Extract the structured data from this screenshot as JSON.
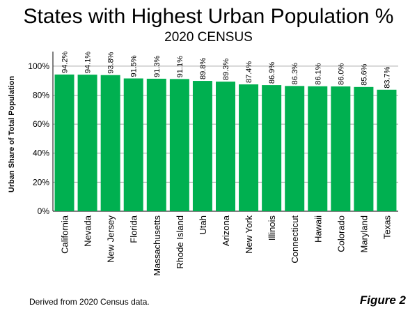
{
  "title": "States with Highest Urban Population %",
  "subtitle": "2020 CENSUS",
  "source_note": "Derived from 2020 Census data.",
  "figure_label": "Figure 2",
  "chart_data": {
    "type": "bar",
    "title": "States with Highest Urban Population %",
    "subtitle": "2020 CENSUS",
    "xlabel": "",
    "ylabel": "Urban Share of Total Population",
    "ylim": [
      0,
      110
    ],
    "yticks": [
      0,
      20,
      40,
      60,
      80,
      100
    ],
    "ytick_labels": [
      "0%",
      "20%",
      "40%",
      "60%",
      "80%",
      "100%"
    ],
    "grid": true,
    "bar_color": "#00b050",
    "categories": [
      "California",
      "Nevada",
      "New Jersey",
      "Florida",
      "Massachusetts",
      "Rhode Island",
      "Utah",
      "Arizona",
      "New York",
      "Illinois",
      "Connecticut",
      "Hawaii",
      "Colorado",
      "Maryland",
      "Texas"
    ],
    "values": [
      94.2,
      94.1,
      93.8,
      91.5,
      91.3,
      91.1,
      89.8,
      89.3,
      87.4,
      86.9,
      86.3,
      86.1,
      86.0,
      85.6,
      83.7
    ],
    "data_labels": [
      "94.2%",
      "94.1%",
      "93.8%",
      "91.5%",
      "91.3%",
      "91.1%",
      "89.8%",
      "89.3%",
      "87.4%",
      "86.9%",
      "86.3%",
      "86.1%",
      "86.0%",
      "85.6%",
      "83.7%"
    ]
  }
}
